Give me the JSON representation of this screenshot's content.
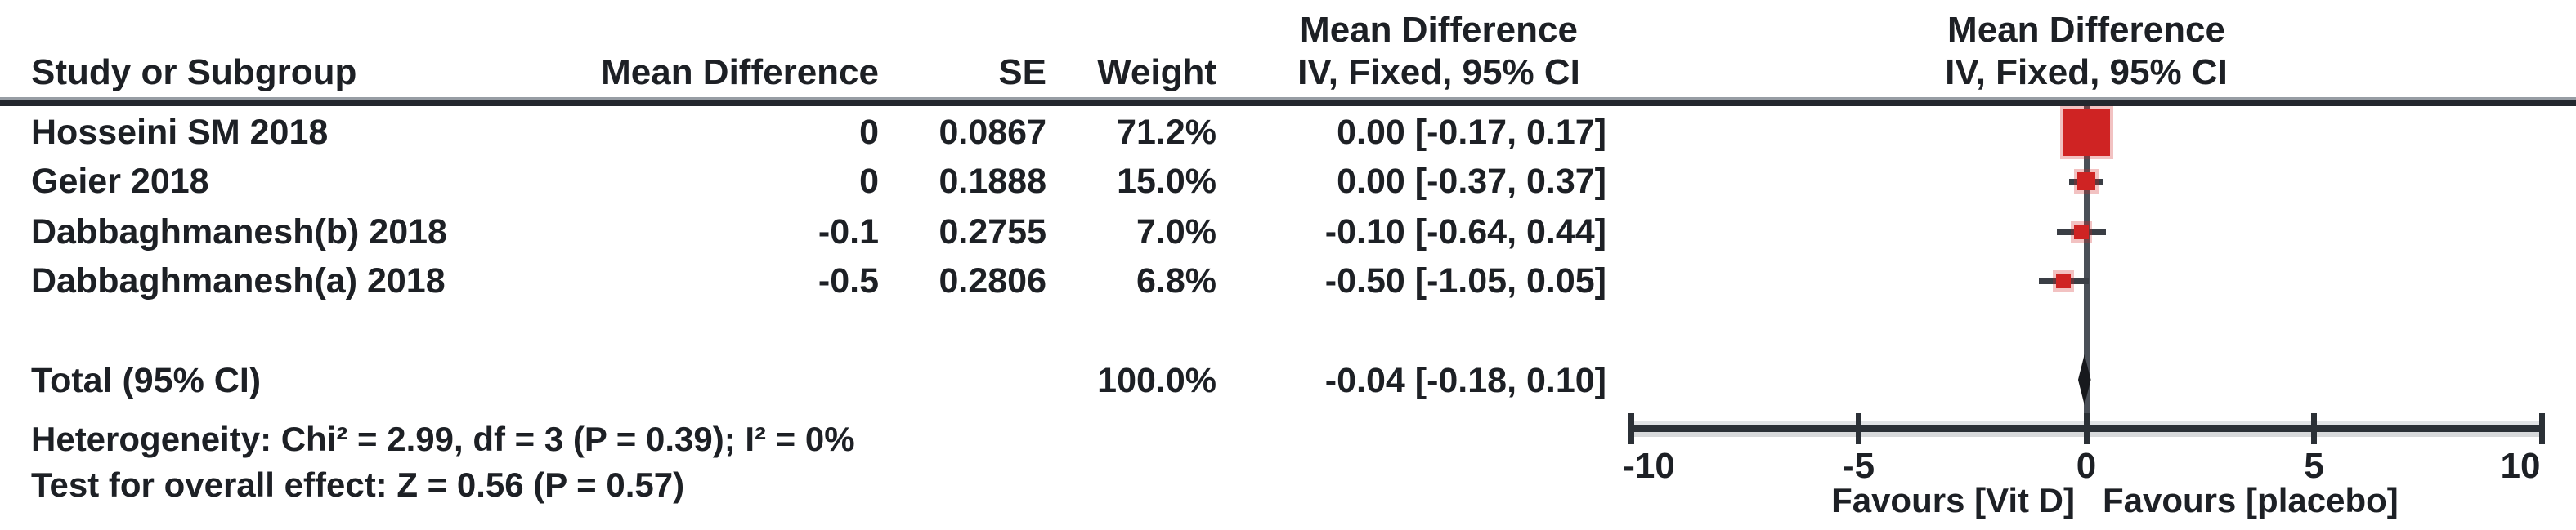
{
  "header": {
    "ci_top": "Mean Difference",
    "plot_top": "Mean Difference",
    "study": "Study or Subgroup",
    "md": "Mean Difference",
    "se": "SE",
    "weight": "Weight",
    "ci_sub": "IV, Fixed, 95% CI",
    "plot_sub": "IV, Fixed, 95% CI"
  },
  "table": {
    "rows": [
      {
        "study": "Hosseini SM 2018",
        "md": "0",
        "se": "0.0867",
        "weight": "71.2%",
        "ci": "0.00 [-0.17, 0.17]"
      },
      {
        "study": "Geier 2018",
        "md": "0",
        "se": "0.1888",
        "weight": "15.0%",
        "ci": "0.00 [-0.37, 0.37]"
      },
      {
        "study": "Dabbaghmanesh(b) 2018",
        "md": "-0.1",
        "se": "0.2755",
        "weight": "7.0%",
        "ci": "-0.10 [-0.64, 0.44]"
      },
      {
        "study": "Dabbaghmanesh(a) 2018",
        "md": "-0.5",
        "se": "0.2806",
        "weight": "6.8%",
        "ci": "-0.50 [-1.05, 0.05]"
      }
    ],
    "total": {
      "label": "Total (95% CI)",
      "weight": "100.0%",
      "ci": "-0.04 [-0.18, 0.10]"
    }
  },
  "footnotes": {
    "heterogeneity": "Heterogeneity: Chi² = 2.99, df = 3 (P = 0.39); I² = 0%",
    "overall_effect": "Test for overall effect: Z = 0.56 (P = 0.57)"
  },
  "chart_data": {
    "type": "forest",
    "effect_measure": "Mean Difference, IV, Fixed, 95% CI",
    "studies": [
      "Hosseini SM 2018",
      "Geier 2018",
      "Dabbaghmanesh(b) 2018",
      "Dabbaghmanesh(a) 2018"
    ],
    "estimates": [
      0.0,
      0.0,
      -0.1,
      -0.5
    ],
    "ci_low": [
      -0.17,
      -0.37,
      -0.64,
      -1.05
    ],
    "ci_high": [
      0.17,
      0.37,
      0.44,
      0.05
    ],
    "weights_pct": [
      71.2,
      15.0,
      7.0,
      6.8
    ],
    "total": {
      "estimate": -0.04,
      "ci_low": -0.18,
      "ci_high": 0.1,
      "weight_pct": 100.0
    },
    "heterogeneity": {
      "chi2": 2.99,
      "df": 3,
      "p": 0.39,
      "i2_pct": 0
    },
    "overall_effect": {
      "z": 0.56,
      "p": 0.57
    },
    "xlim": [
      -10,
      10
    ],
    "x_ticks": [
      -10,
      -5,
      0,
      5,
      10
    ],
    "x_left_label": "Favours [Vit D]",
    "x_right_label": "Favours [placebo]",
    "marker_color": "#cf2323",
    "ci_line_color": "#3a3e45",
    "diamond_color": "#17191d",
    "legend_position": "none",
    "grid": false
  }
}
